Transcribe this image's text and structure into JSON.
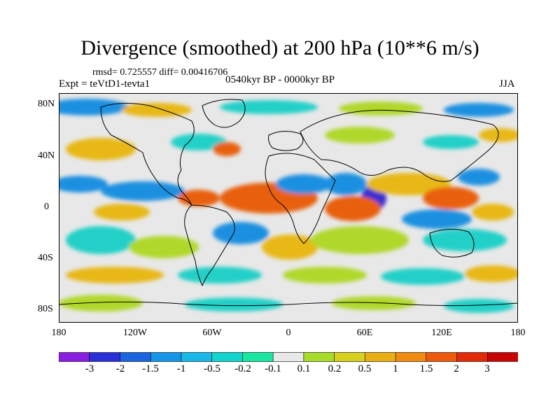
{
  "title": "Divergence (smoothed) at 200 hPa (10**6 m/s)",
  "stats": "rmsd= 0.725557 diff= 0.00416706",
  "expt": "Expt = teVtD1-tevta1",
  "period": "0540kyr BP - 0000kyr BP",
  "season": "JJA",
  "axes": {
    "y_labels": [
      "80N",
      "40N",
      "0",
      "40S",
      "80S"
    ],
    "x_labels": [
      "180",
      "120W",
      "60W",
      "0",
      "60E",
      "120E",
      "180"
    ]
  },
  "colorbar": {
    "labels": [
      "-3",
      "-2",
      "-1.5",
      "-1",
      "-0.5",
      "-0.2",
      "-0.1",
      "0.1",
      "0.2",
      "0.5",
      "1",
      "1.5",
      "2",
      "3"
    ],
    "colors": [
      "#8b1fe0",
      "#2a2fd8",
      "#1a64e0",
      "#1596e8",
      "#19b8e6",
      "#12d4cc",
      "#19e6a0",
      "#e8e8e8",
      "#a8dc2a",
      "#d8d01e",
      "#e8b012",
      "#f08a10",
      "#ee5a0c",
      "#e02a08",
      "#c80404"
    ]
  },
  "palette": {
    "neg_strong": "#3a2fd0",
    "neg_mid": "#1a90e0",
    "neg_weak": "#20d0c8",
    "neutral": "#e8e8e8",
    "pos_weak": "#b0d82a",
    "pos_mid": "#e8b814",
    "pos_strong": "#e8600c"
  }
}
